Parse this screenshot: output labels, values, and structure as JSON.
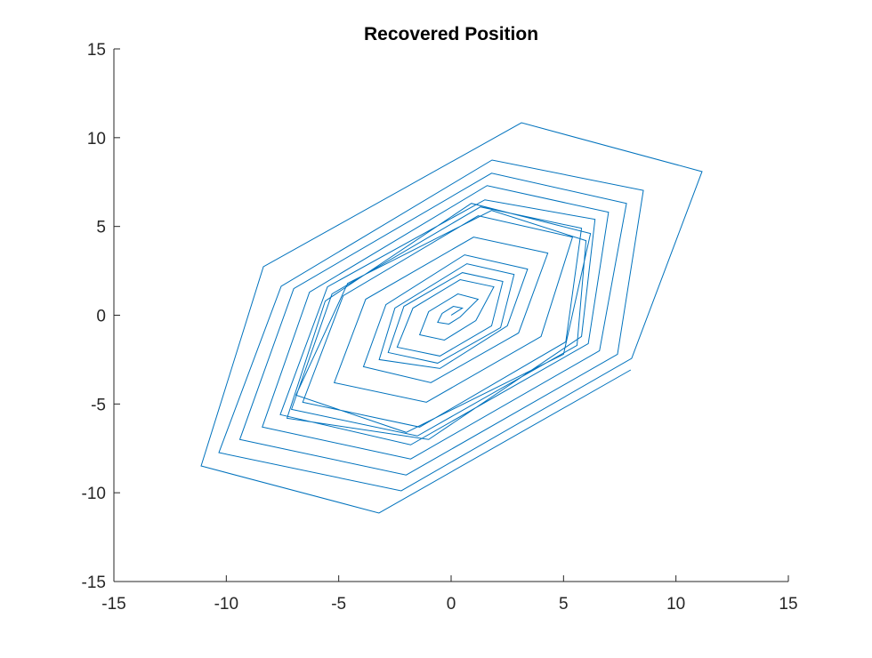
{
  "chart_data": {
    "type": "line",
    "title": "Recovered Position",
    "color": "#0072bd",
    "xlim": [
      -15,
      15
    ],
    "ylim": [
      -15,
      15
    ],
    "xticks": [
      -15,
      -10,
      -5,
      0,
      5,
      10,
      15
    ],
    "yticks": [
      -15,
      -10,
      -5,
      0,
      5,
      10,
      15
    ],
    "x": [
      0,
      0.5,
      0.1,
      -0.4,
      -0.6,
      -0.1,
      0.4,
      1.2,
      0.3,
      -1.0,
      -1.4,
      -0.3,
      1.1,
      1.9,
      0.4,
      -1.7,
      -2.4,
      -0.5,
      1.8,
      2.3,
      0.5,
      -2.1,
      -2.8,
      -0.6,
      2.2,
      2.8,
      0.7,
      -2.5,
      -3.2,
      -0.5,
      2.5,
      3.4,
      0.6,
      -2.9,
      -3.9,
      -0.9,
      3.0,
      4.3,
      1.0,
      -3.8,
      -5.2,
      -1.1,
      4.0,
      5.4,
      1.2,
      -4.8,
      -6.6,
      -1.4,
      5.1,
      5.8,
      1.3,
      -5.3,
      -7.1,
      -1.5,
      5.6,
      6.0,
      1.8,
      -4.6,
      -6.9,
      -2.0,
      5.0,
      6.2,
      0.9,
      -5.6,
      -7.3,
      -1.0,
      5.8,
      6.4,
      1.5,
      -5.5,
      -7.6,
      -1.8,
      6.1,
      7.0,
      1.6,
      -6.3,
      -8.4,
      -1.8,
      6.6,
      7.8,
      1.8,
      -7.0,
      -9.4,
      -2.0,
      7.4,
      8.55,
      1.82,
      -7.56,
      -10.33,
      -2.22,
      8.03,
      11.16,
      3.13,
      -8.35,
      -11.12,
      -3.21,
      7.99
    ],
    "values": [
      0,
      0.4,
      0.5,
      0.1,
      -0.4,
      -0.5,
      -0.1,
      0.9,
      1.2,
      0.2,
      -1.1,
      -1.4,
      -0.3,
      1.6,
      2.0,
      0.4,
      -1.8,
      -2.3,
      -0.6,
      1.9,
      2.4,
      0.5,
      -2.1,
      -2.7,
      -0.7,
      2.3,
      2.9,
      0.4,
      -2.5,
      -3.0,
      -0.6,
      2.6,
      3.4,
      0.6,
      -2.9,
      -3.8,
      -1.0,
      3.5,
      4.4,
      0.9,
      -3.8,
      -4.9,
      -1.2,
      4.4,
      5.6,
      1.1,
      -4.9,
      -6.3,
      -1.5,
      4.9,
      6.1,
      1.2,
      -5.3,
      -6.8,
      -1.7,
      4.2,
      5.9,
      1.8,
      -4.5,
      -6.6,
      -2.2,
      4.6,
      6.3,
      0.8,
      -5.8,
      -7.0,
      -1.2,
      5.4,
      6.5,
      1.6,
      -5.6,
      -7.3,
      -1.6,
      5.8,
      7.3,
      1.3,
      -6.3,
      -8.1,
      -2.0,
      6.3,
      8.0,
      1.5,
      -7.0,
      -9.0,
      -2.2,
      7.03,
      8.74,
      1.63,
      -7.74,
      -9.89,
      -2.43,
      8.09,
      10.84,
      2.73,
      -8.49,
      -11.14,
      -3.08
    ]
  }
}
